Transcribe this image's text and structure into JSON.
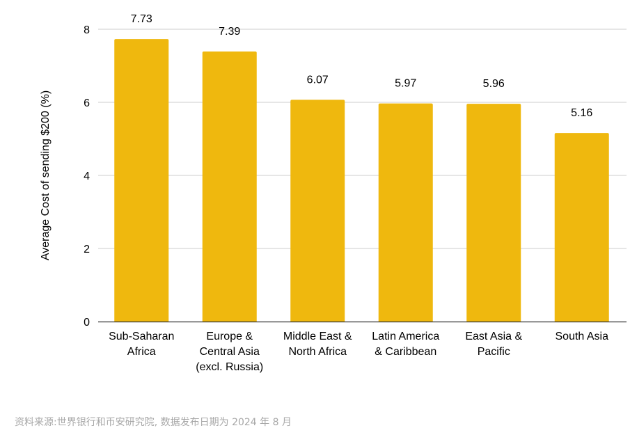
{
  "chart_data": {
    "type": "bar",
    "categories": [
      [
        "Sub-Saharan",
        "Africa"
      ],
      [
        "Europe &",
        "Central Asia",
        "(excl. Russia)"
      ],
      [
        "Middle East &",
        "North Africa"
      ],
      [
        "Latin America",
        "& Caribbean"
      ],
      [
        "East Asia &",
        "Pacific"
      ],
      [
        "South Asia"
      ]
    ],
    "values": [
      7.73,
      7.39,
      6.07,
      5.97,
      5.96,
      5.16
    ],
    "data_labels": [
      "7.73",
      "7.39",
      "6.07",
      "5.97",
      "5.96",
      "5.16"
    ],
    "ylabel": "Average Cost of sending $200 (%)",
    "ylim": [
      0,
      8
    ],
    "yticks": [
      0,
      2,
      4,
      6,
      8
    ],
    "grid": true,
    "legend": "none",
    "bar_color": "#efb80e",
    "grid_color": "#cccccc",
    "axis_color": "#333333"
  },
  "source_note": "资料来源:世界银行和币安研究院, 数据发布日期为 2024 年 8 月"
}
